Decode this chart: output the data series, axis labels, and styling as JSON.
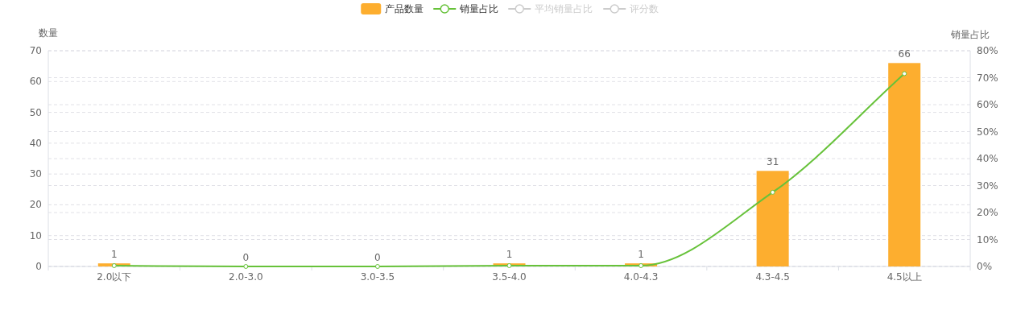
{
  "chart_data": {
    "type": "bar",
    "ylabel": "数量",
    "y2label": "销量占比",
    "categories": [
      "2.0以下",
      "2.0-3.0",
      "3.0-3.5",
      "3.5-4.0",
      "4.0-4.3",
      "4.3-4.5",
      "4.5以上"
    ],
    "series": [
      {
        "name": "产品数量",
        "color": "#fdae2f",
        "values": [
          1,
          0,
          0,
          1,
          1,
          31,
          66
        ],
        "value_labels": [
          "1",
          "0",
          "0",
          "1",
          "1",
          "31",
          "66"
        ]
      },
      {
        "name": "销量占比",
        "type": "line",
        "axis": "y2",
        "color": "#67c23a",
        "values": [
          0.3,
          0,
          0,
          0.3,
          0.3,
          27.5,
          71.5
        ]
      },
      {
        "name": "平均销量占比",
        "type": "line",
        "axis": "y2",
        "color": "#cccccc",
        "values": [
          null,
          null,
          null,
          null,
          null,
          null,
          null
        ]
      },
      {
        "name": "评分数",
        "type": "line",
        "axis": "y2",
        "color": "#cccccc",
        "values": [
          null,
          null,
          null,
          null,
          null,
          null,
          null
        ]
      }
    ],
    "ylim": [
      0,
      70
    ],
    "yticks": [
      0,
      10,
      20,
      30,
      40,
      50,
      60,
      70
    ],
    "y2lim": [
      0,
      80
    ],
    "y2ticks": [
      {
        "value": 0,
        "label": "0%"
      },
      {
        "value": 10,
        "label": "10%"
      },
      {
        "value": 20,
        "label": "20%"
      },
      {
        "value": 30,
        "label": "30%"
      },
      {
        "value": 40,
        "label": "40%"
      },
      {
        "value": 50,
        "label": "50%"
      },
      {
        "value": 60,
        "label": "60%"
      },
      {
        "value": 70,
        "label": "70%"
      },
      {
        "value": 80,
        "label": "80%"
      }
    ],
    "grid": true,
    "legend": "top",
    "marker": "circle"
  }
}
